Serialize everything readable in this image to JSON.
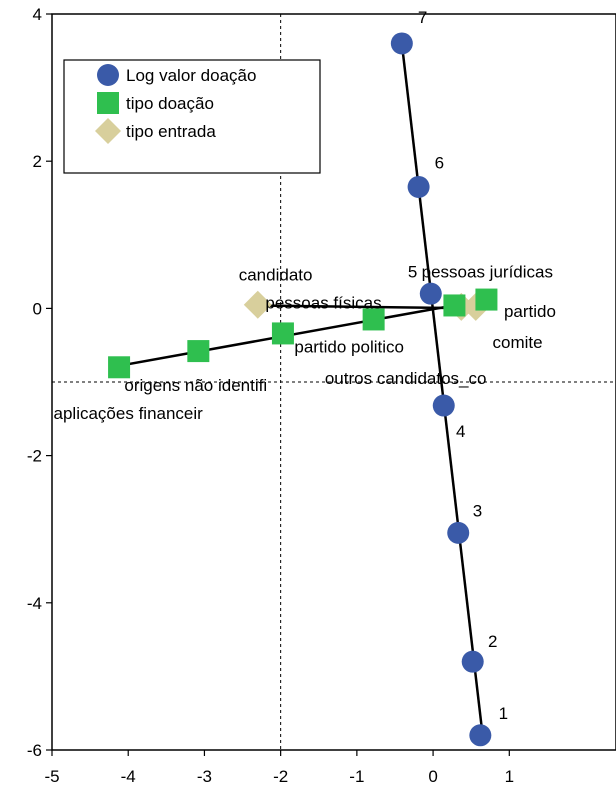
{
  "chart_data": {
    "type": "scatter",
    "title": "",
    "xlabel": "",
    "ylabel": "",
    "xlim": [
      -5,
      2.4
    ],
    "ylim": [
      -6,
      4
    ],
    "xticks": [
      -5,
      -4,
      -3,
      -2,
      -1,
      0,
      1
    ],
    "yticks": [
      -6,
      -4,
      -2,
      0,
      2,
      4
    ],
    "reference_lines": {
      "x": -2,
      "y": -1
    },
    "legend": {
      "position": "top-left",
      "entries": [
        "Log valor doação",
        "tipo doação",
        "tipo entrada"
      ]
    },
    "series": [
      {
        "name": "Log valor doação",
        "marker": "circle",
        "color": "#3a5aa8",
        "points": [
          {
            "label": "1",
            "x": 0.62,
            "y": -5.8
          },
          {
            "label": "2",
            "x": 0.52,
            "y": -4.8
          },
          {
            "label": "3",
            "x": 0.33,
            "y": -3.05
          },
          {
            "label": "4",
            "x": 0.14,
            "y": -1.32
          },
          {
            "label": "5",
            "x": -0.03,
            "y": 0.2
          },
          {
            "label": "6",
            "x": -0.19,
            "y": 1.65
          },
          {
            "label": "7",
            "x": -0.41,
            "y": 3.6
          }
        ],
        "fit_line": [
          [
            -0.41,
            3.6
          ],
          [
            0.65,
            -5.8
          ]
        ]
      },
      {
        "name": "tipo doação",
        "marker": "square",
        "color": "#2fbf4f",
        "points": [
          {
            "label": "pessoas jurídicas",
            "x": 0.7,
            "y": 0.12
          },
          {
            "label": "outros candidatos_co",
            "x": 0.28,
            "y": 0.04
          },
          {
            "label": "partido politico",
            "x": -0.78,
            "y": -0.15
          },
          {
            "label": "",
            "x": -1.97,
            "y": -0.34
          },
          {
            "label": "",
            "x": -3.08,
            "y": -0.58
          },
          {
            "label": "origens não identifi",
            "x": -4.12,
            "y": -0.8
          }
        ],
        "fit_line": [
          [
            -4.12,
            -0.78
          ],
          [
            0.7,
            0.12
          ]
        ]
      },
      {
        "name": "tipo entrada",
        "marker": "diamond",
        "color": "#d8cf9c",
        "points": [
          {
            "label": "candidato",
            "x": -2.3,
            "y": 0.05
          },
          {
            "label": "",
            "x": 0.37,
            "y": 0.02
          },
          {
            "label": "",
            "x": 0.56,
            "y": 0.02
          }
        ],
        "fit_line": [
          [
            -2.3,
            0.04
          ],
          [
            0.62,
            0.0
          ]
        ]
      }
    ],
    "annotations": [
      {
        "text": "candidato",
        "x": -2.55,
        "y": 0.38
      },
      {
        "text": "pessoas físicas",
        "x": -2.2,
        "y": 0.0
      },
      {
        "text": "5",
        "x": -0.33,
        "y": 0.42
      },
      {
        "text": "pessoas jurídicas",
        "x": -0.15,
        "y": 0.42
      },
      {
        "text": "partido",
        "x": 0.93,
        "y": -0.12
      },
      {
        "text": "comite",
        "x": 0.78,
        "y": -0.54
      },
      {
        "text": "partido politico",
        "x": -1.82,
        "y": -0.6
      },
      {
        "text": "origens não identifi",
        "x": -4.05,
        "y": -1.12
      },
      {
        "text": "outros candidatos_co",
        "x": -1.42,
        "y": -1.03
      },
      {
        "text": "aplicações financeir",
        "x": -4.98,
        "y": -1.5
      },
      {
        "text": "7",
        "x": -0.2,
        "y": 3.88
      },
      {
        "text": "6",
        "x": 0.02,
        "y": 1.9
      },
      {
        "text": "4",
        "x": 0.3,
        "y": -1.75
      },
      {
        "text": "3",
        "x": 0.52,
        "y": -2.83
      },
      {
        "text": "2",
        "x": 0.72,
        "y": -4.6
      },
      {
        "text": "1",
        "x": 0.86,
        "y": -5.58
      }
    ]
  }
}
